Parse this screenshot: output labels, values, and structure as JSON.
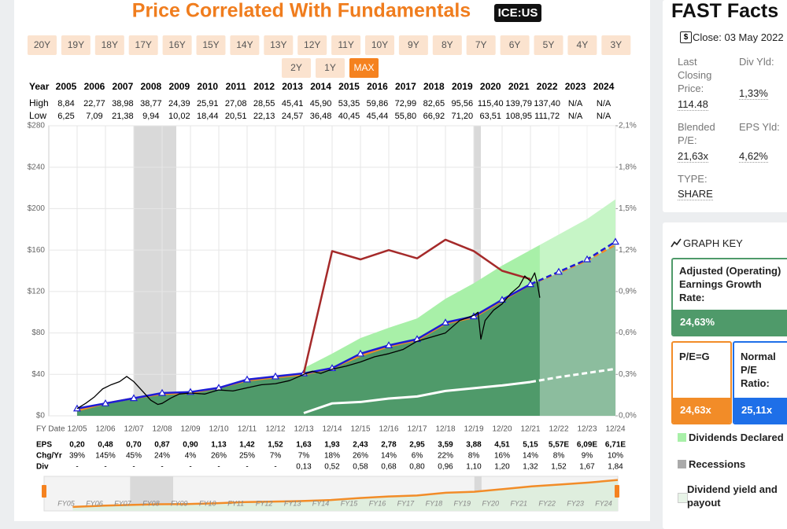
{
  "header": {
    "title": "Price Correlated With Fundamentals",
    "ticker": "ICE:US",
    "buttons": [
      "20Y",
      "19Y",
      "18Y",
      "17Y",
      "16Y",
      "15Y",
      "14Y",
      "13Y",
      "12Y",
      "11Y",
      "10Y",
      "9Y",
      "8Y",
      "7Y",
      "6Y",
      "5Y",
      "4Y",
      "3Y",
      "2Y",
      "1Y",
      "MAX"
    ],
    "selected": 20
  },
  "table": {
    "year_label": "Year",
    "years": [
      "2005",
      "2006",
      "2007",
      "2008",
      "2009",
      "2010",
      "2011",
      "2012",
      "2013",
      "2014",
      "2015",
      "2016",
      "2017",
      "2018",
      "2019",
      "2020",
      "2021",
      "2022",
      "2023",
      "2024"
    ],
    "high_label": "High",
    "high": [
      "8,84",
      "22,77",
      "38,98",
      "38,77",
      "24,39",
      "25,91",
      "27,08",
      "28,55",
      "45,41",
      "45,90",
      "53,35",
      "59,86",
      "72,99",
      "82,65",
      "95,56",
      "115,40",
      "139,79",
      "137,40",
      "N/A",
      "N/A"
    ],
    "low_label": "Low",
    "low": [
      "6,25",
      "7,09",
      "21,38",
      "9,94",
      "10,02",
      "18,44",
      "20,51",
      "22,13",
      "24,57",
      "36,48",
      "40,45",
      "45,44",
      "55,80",
      "66,92",
      "71,20",
      "63,51",
      "108,95",
      "111,72",
      "N/A",
      "N/A"
    ]
  },
  "chart_data": {
    "type": "line",
    "x": [
      2005,
      2006,
      2007,
      2008,
      2009,
      2010,
      2011,
      2012,
      2013,
      2014,
      2015,
      2016,
      2017,
      2018,
      2019,
      2020,
      2021,
      2022,
      2023,
      2024
    ],
    "xlim": [
      2004,
      2024
    ],
    "xticks": [
      {
        "value": 2005,
        "label": "12/05"
      },
      {
        "value": 2006,
        "label": "12/06"
      },
      {
        "value": 2007,
        "label": "12/07"
      },
      {
        "value": 2008,
        "label": "12/08"
      },
      {
        "value": 2009,
        "label": "12/09"
      },
      {
        "value": 2010,
        "label": "12/10"
      },
      {
        "value": 2011,
        "label": "12/11"
      },
      {
        "value": 2012,
        "label": "12/12"
      },
      {
        "value": 2013,
        "label": "12/13"
      },
      {
        "value": 2014,
        "label": "12/14"
      },
      {
        "value": 2015,
        "label": "12/15"
      },
      {
        "value": 2016,
        "label": "12/16"
      },
      {
        "value": 2017,
        "label": "12/17"
      },
      {
        "value": 2018,
        "label": "12/18"
      },
      {
        "value": 2019,
        "label": "12/19"
      },
      {
        "value": 2020,
        "label": "12/20"
      },
      {
        "value": 2021,
        "label": "12/21"
      },
      {
        "value": 2022,
        "label": "12/22"
      },
      {
        "value": 2023,
        "label": "12/23"
      },
      {
        "value": 2024,
        "label": "12/24"
      }
    ],
    "ylim": [
      0,
      280
    ],
    "yticks": [
      {
        "value": 0,
        "label": "$0"
      },
      {
        "value": 40,
        "label": "$40"
      },
      {
        "value": 80,
        "label": "$80"
      },
      {
        "value": 120,
        "label": "$120"
      },
      {
        "value": 160,
        "label": "$160"
      },
      {
        "value": 200,
        "label": "$200"
      },
      {
        "value": 240,
        "label": "$240"
      },
      {
        "value": 280,
        "label": "$280"
      }
    ],
    "y2lim": [
      0,
      2.1
    ],
    "y2ticks": [
      {
        "value": 0,
        "label": "0,0%"
      },
      {
        "value": 0.3,
        "label": "0,3%"
      },
      {
        "value": 0.6,
        "label": "0,6%"
      },
      {
        "value": 0.9,
        "label": "0,9%"
      },
      {
        "value": 1.2,
        "label": "1,2%"
      },
      {
        "value": 1.5,
        "label": "1,5%"
      },
      {
        "value": 1.8,
        "label": "1,8%"
      },
      {
        "value": 2.1,
        "label": "2,1%"
      }
    ],
    "grid": true,
    "forecast_from": 2021,
    "recessions": [
      [
        2007.0,
        2008.5
      ],
      [
        2019.0,
        2019.25
      ]
    ],
    "recession_color": "#d9d9d9",
    "series": [
      {
        "kind": "area",
        "color": "#4f9a6a",
        "line_color": "#f28c28",
        "values": [
          5,
          12,
          17,
          21,
          22,
          27,
          34,
          37,
          40,
          46,
          58,
          67,
          73,
          89,
          95,
          111,
          127,
          138,
          150,
          165
        ]
      },
      {
        "kind": "stack",
        "color": "#a8f0a8",
        "values": [
          null,
          null,
          null,
          null,
          null,
          null,
          null,
          null,
          6,
          14,
          17,
          18,
          21,
          24,
          33,
          34,
          33,
          37,
          40,
          44
        ]
      },
      {
        "kind": "line",
        "color": "#1c1cd6",
        "markers": "triangle",
        "values": [
          7,
          12,
          17,
          22,
          23,
          27,
          35,
          38,
          41,
          46,
          60,
          68,
          74,
          90,
          96,
          112,
          127,
          139,
          151,
          168
        ]
      },
      {
        "kind": "line",
        "color": "#a52a2a",
        "values": [
          null,
          null,
          null,
          null,
          null,
          null,
          null,
          null,
          41,
          159,
          151,
          160,
          152,
          170,
          159,
          140,
          132,
          null,
          null,
          null
        ]
      },
      {
        "kind": "line",
        "axis": "y2",
        "color": "#ffffff",
        "values": [
          null,
          null,
          null,
          null,
          null,
          null,
          null,
          null,
          0.02,
          0.09,
          0.1,
          0.125,
          0.14,
          0.18,
          0.2,
          0.22,
          0.245,
          0.28,
          0.31,
          0.34
        ]
      },
      {
        "kind": "price",
        "color": "#000000",
        "x": [
          2005.0,
          2005.3,
          2005.6,
          2005.9,
          2006.2,
          2006.5,
          2006.75,
          2007.0,
          2007.3,
          2007.6,
          2007.85,
          2008.0,
          2008.3,
          2008.6,
          2009.0,
          2009.5,
          2010.0,
          2010.5,
          2011.0,
          2011.5,
          2012.0,
          2012.5,
          2013.0,
          2013.3,
          2013.6,
          2014.0,
          2014.5,
          2015.0,
          2015.5,
          2016.0,
          2016.5,
          2017.0,
          2017.5,
          2018.0,
          2018.5,
          2019.0,
          2019.15,
          2019.25,
          2019.4,
          2019.7,
          2020.0,
          2020.3,
          2020.6,
          2020.8,
          2021.0,
          2021.15,
          2021.25,
          2021.33
        ],
        "values": [
          7,
          12,
          18,
          26,
          30,
          33,
          38,
          33,
          24,
          15,
          11,
          12,
          17,
          21,
          22,
          21,
          25,
          24,
          27,
          30,
          31,
          34,
          40,
          43,
          41,
          45,
          48,
          52,
          57,
          60,
          64,
          72,
          76,
          80,
          92,
          97,
          100,
          74,
          92,
          102,
          108,
          118,
          125,
          135,
          130,
          138,
          127,
          114
        ]
      }
    ]
  },
  "fundamentals": {
    "date_label": "FY Date",
    "eps_label": "EPS",
    "chg_label": "Chg/Yr",
    "div_label": "Div",
    "eps": [
      "0,20",
      "0,48",
      "0,70",
      "0,87",
      "0,90",
      "1,13",
      "1,42",
      "1,52",
      "1,63",
      "1,93",
      "2,43",
      "2,78",
      "2,95",
      "3,59",
      "3,88",
      "4,51",
      "5,15",
      "5,57E",
      "6,09E",
      "6,71E"
    ],
    "chg": [
      "39%",
      "145%",
      "45%",
      "24%",
      "4%",
      "26%",
      "25%",
      "7%",
      "7%",
      "18%",
      "26%",
      "14%",
      "6%",
      "22%",
      "8%",
      "16%",
      "14%",
      "8%",
      "9%",
      "10%"
    ],
    "div": [
      "-",
      "-",
      "-",
      "-",
      "-",
      "-",
      "-",
      "-",
      "0,13",
      "0,52",
      "0,58",
      "0,68",
      "0,80",
      "0,96",
      "1,10",
      "1,20",
      "1,32",
      "1,52",
      "1,67",
      "1,84"
    ]
  },
  "navigator": {
    "labels": [
      "FY05",
      "FY06",
      "FY07",
      "FY08",
      "FY09",
      "FY10",
      "FY11",
      "FY12",
      "FY13",
      "FY14",
      "FY15",
      "FY16",
      "FY17",
      "FY18",
      "FY19",
      "FY20",
      "FY21",
      "FY22",
      "FY23",
      "FY24"
    ]
  },
  "fast_facts": {
    "title": "FAST Facts",
    "close": "Close: 03 May 2022",
    "price_label": "Last Closing Price:",
    "price": "114.48",
    "div_yld_label": "Div Yld:",
    "div_yld": "1,33%",
    "pe_label": "Blended P/E:",
    "pe": "21,63x",
    "eps_yld_label": "EPS Yld:",
    "eps_yld": "4,62%",
    "type_label": "TYPE:",
    "type": "SHARE"
  },
  "graph_key": {
    "title": "GRAPH KEY",
    "growth_label": "Adjusted (Operating) Earnings Growth Rate:",
    "growth": "24,63%",
    "peg_label": "P/E=G",
    "peg": "24,63x",
    "normal_label": "Normal P/E Ratio:",
    "normal": "25,11x",
    "dividends": "Dividends Declared",
    "recessions": "Recessions",
    "yield": "Dividend yield and payout"
  }
}
